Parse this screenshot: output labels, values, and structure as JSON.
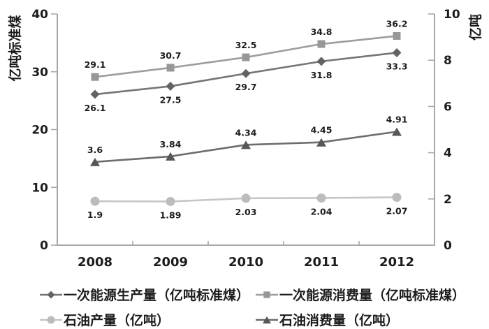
{
  "chart_data": {
    "type": "line",
    "x_categories": [
      "2008",
      "2009",
      "2010",
      "2011",
      "2012"
    ],
    "left_axis": {
      "title": "亿吨标准煤",
      "min": 0,
      "max": 40,
      "tick_values": [
        0,
        10,
        20,
        30,
        40
      ],
      "tick_labels": [
        "0",
        "10",
        "20",
        "30",
        "40"
      ]
    },
    "right_axis": {
      "title": "亿吨",
      "min": 0,
      "max": 10,
      "tick_values": [
        0,
        2,
        4,
        6,
        8,
        10
      ],
      "tick_labels": [
        "0",
        "2",
        "4",
        "6",
        "8",
        "10"
      ]
    },
    "grid": false,
    "value_labels_shown": true,
    "legend_position": "bottom",
    "axis_color": "#a8a8a8",
    "text_color": "#1c1c1c",
    "series": [
      {
        "name": "一次能源生产量（亿吨标准煤）",
        "axis": "left",
        "marker": "diamond",
        "marker_color": "#636363",
        "line_color": "#757575",
        "values": [
          26.1,
          27.5,
          29.7,
          31.8,
          33.3
        ],
        "labels": [
          "26.1",
          "27.5",
          "29.7",
          "31.8",
          "33.3"
        ],
        "label_position": "below"
      },
      {
        "name": "一次能源消费量（亿吨标准煤）",
        "axis": "left",
        "marker": "square",
        "marker_color": "#979797",
        "line_color": "#9d9d9d",
        "values": [
          29.1,
          30.7,
          32.5,
          34.8,
          36.2
        ],
        "labels": [
          "29.1",
          "30.7",
          "32.5",
          "34.8",
          "36.2"
        ],
        "label_position": "above"
      },
      {
        "name": "石油产量（亿吨）",
        "axis": "right",
        "marker": "circle",
        "marker_color": "#bcbcbc",
        "line_color": "#c6c6c6",
        "values": [
          1.9,
          1.89,
          2.03,
          2.04,
          2.07
        ],
        "labels": [
          "1.9",
          "1.89",
          "2.03",
          "2.04",
          "2.07"
        ],
        "label_position": "below"
      },
      {
        "name": "石油消费量（亿吨）",
        "axis": "right",
        "marker": "triangle",
        "marker_color": "#575757",
        "line_color": "#6d6d6d",
        "values": [
          3.6,
          3.84,
          4.34,
          4.45,
          4.91
        ],
        "labels": [
          "3.6",
          "3.84",
          "4.34",
          "4.45",
          "4.91"
        ],
        "label_position": "above"
      }
    ]
  },
  "legend": {
    "items": [
      {
        "label": "一次能源生产量（亿吨标准煤）"
      },
      {
        "label": "一次能源消费量（亿吨标准煤）"
      },
      {
        "label": "石油产量（亿吨）"
      },
      {
        "label": "石油消费量（亿吨）"
      }
    ]
  }
}
